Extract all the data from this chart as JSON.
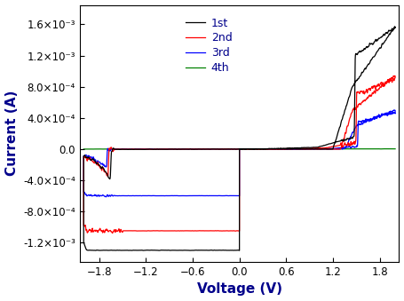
{
  "title": "",
  "xlabel": "Voltage (V)",
  "ylabel": "Current (A)",
  "xlim": [
    -2.05,
    2.05
  ],
  "ylim": [
    -0.00145,
    0.00185
  ],
  "xticks": [
    -1.8,
    -1.2,
    -0.6,
    0.0,
    0.6,
    1.2,
    1.8
  ],
  "yticks": [
    -0.0012,
    -0.0008,
    -0.0004,
    0.0,
    0.0004,
    0.0008,
    0.0012,
    0.0016
  ],
  "colors": {
    "1st": "black",
    "2nd": "red",
    "3rd": "blue",
    "4th": "green"
  },
  "legend_labels": [
    "1st",
    "2nd",
    "3rd",
    "4th"
  ],
  "background": "white",
  "fig_bg": "white",
  "lw": 0.9
}
